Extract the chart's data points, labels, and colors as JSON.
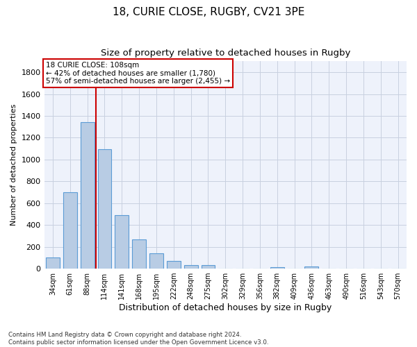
{
  "title_line1": "18, CURIE CLOSE, RUGBY, CV21 3PE",
  "title_line2": "Size of property relative to detached houses in Rugby",
  "xlabel": "Distribution of detached houses by size in Rugby",
  "ylabel": "Number of detached properties",
  "categories": [
    "34sqm",
    "61sqm",
    "88sqm",
    "114sqm",
    "141sqm",
    "168sqm",
    "195sqm",
    "222sqm",
    "248sqm",
    "275sqm",
    "302sqm",
    "329sqm",
    "356sqm",
    "382sqm",
    "409sqm",
    "436sqm",
    "463sqm",
    "490sqm",
    "516sqm",
    "543sqm",
    "570sqm"
  ],
  "values": [
    100,
    700,
    1340,
    1095,
    490,
    270,
    140,
    70,
    35,
    35,
    0,
    0,
    0,
    15,
    0,
    20,
    0,
    0,
    0,
    0,
    0
  ],
  "bar_color": "#b8cce4",
  "bar_edge_color": "#5b9bd5",
  "vline_x_index": 2.5,
  "vline_color": "#cc0000",
  "annotation_line1": "18 CURIE CLOSE: 108sqm",
  "annotation_line2": "← 42% of detached houses are smaller (1,780)",
  "annotation_line3": "57% of semi-detached houses are larger (2,455) →",
  "ylim": [
    0,
    1900
  ],
  "yticks": [
    0,
    200,
    400,
    600,
    800,
    1000,
    1200,
    1400,
    1600,
    1800
  ],
  "grid_color": "#c8d0e0",
  "background_color": "#eef2fb",
  "footnote": "Contains HM Land Registry data © Crown copyright and database right 2024.\nContains public sector information licensed under the Open Government Licence v3.0.",
  "title_fontsize": 11,
  "subtitle_fontsize": 9.5,
  "ylabel_fontsize": 8,
  "xlabel_fontsize": 9,
  "bar_width": 0.8
}
